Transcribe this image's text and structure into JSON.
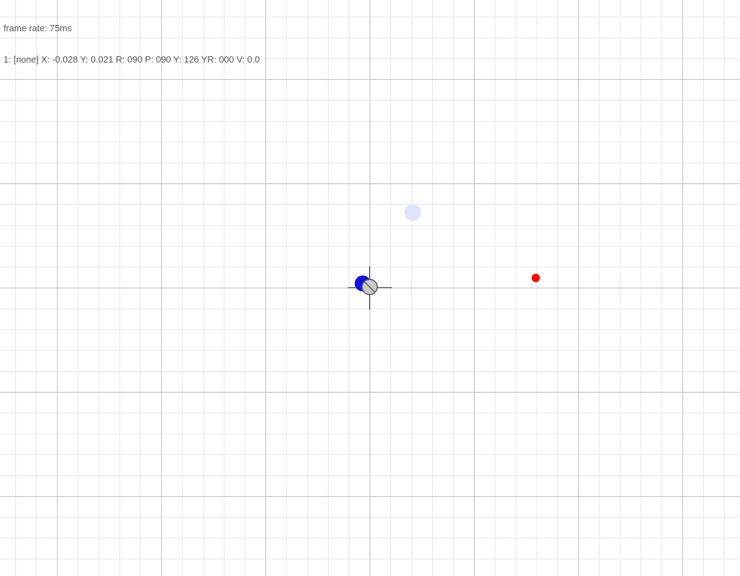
{
  "hud": {
    "frame_rate": "frame rate: 75ms",
    "status": "1: [none] X: -0.028 Y: 0.021 R: 090 P: 090 Y: 126 YR: 000 V: 0.0"
  },
  "colors": {
    "background": "#ffffff",
    "grid_minor": "#e6e6e6",
    "grid_major": "#bdbdbd",
    "crosshair": "#777777",
    "device": "#1010ee",
    "pointer_fill": "#c8c8c8",
    "pointer_stroke": "#555555",
    "ghost_target": "#dfe3fb",
    "target": "#ff0000"
  }
}
